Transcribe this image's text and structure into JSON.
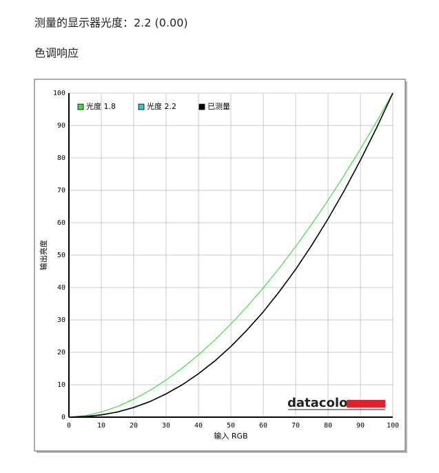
{
  "header": {
    "title": "测量的显示器光度：2.2 (0.00)",
    "section": "色调响应"
  },
  "logo": "datacolor",
  "chart_data": {
    "type": "line",
    "x_label": "输入 RGB",
    "y_label": "输出亮度",
    "x": [
      0,
      5,
      10,
      15,
      20,
      25,
      30,
      35,
      40,
      45,
      50,
      55,
      60,
      65,
      70,
      75,
      80,
      85,
      90,
      95,
      100
    ],
    "series": [
      {
        "name": "光度 1.8",
        "color": "#3ddc3d",
        "values": [
          0,
          0.46,
          1.58,
          3.29,
          5.52,
          8.25,
          11.45,
          15.11,
          19.22,
          23.76,
          28.72,
          34.09,
          39.87,
          46.05,
          52.62,
          59.58,
          66.92,
          74.64,
          82.73,
          91.18,
          100
        ]
      },
      {
        "name": "光度 2.2",
        "color": "#2ec9c9",
        "values": [
          0,
          0.14,
          0.63,
          1.54,
          2.9,
          4.74,
          7.08,
          9.93,
          13.32,
          17.26,
          21.76,
          26.84,
          32.5,
          38.76,
          45.62,
          53.11,
          61.21,
          69.94,
          79.31,
          89.33,
          100
        ]
      },
      {
        "name": "已测量",
        "color": "#000000",
        "values": [
          0,
          0.2,
          0.7,
          1.6,
          3.0,
          4.8,
          7.2,
          10.0,
          13.4,
          17.3,
          21.8,
          26.9,
          32.5,
          38.8,
          45.6,
          53.1,
          61.2,
          69.9,
          79.3,
          89.3,
          100
        ]
      }
    ],
    "xlim": [
      0,
      100
    ],
    "ylim": [
      0,
      100
    ],
    "xticks": [
      0,
      10,
      20,
      30,
      40,
      50,
      60,
      70,
      80,
      90,
      100
    ],
    "yticks": [
      0,
      10,
      20,
      30,
      40,
      50,
      60,
      70,
      80,
      90,
      100
    ],
    "grid": true,
    "legend": "top-left"
  }
}
